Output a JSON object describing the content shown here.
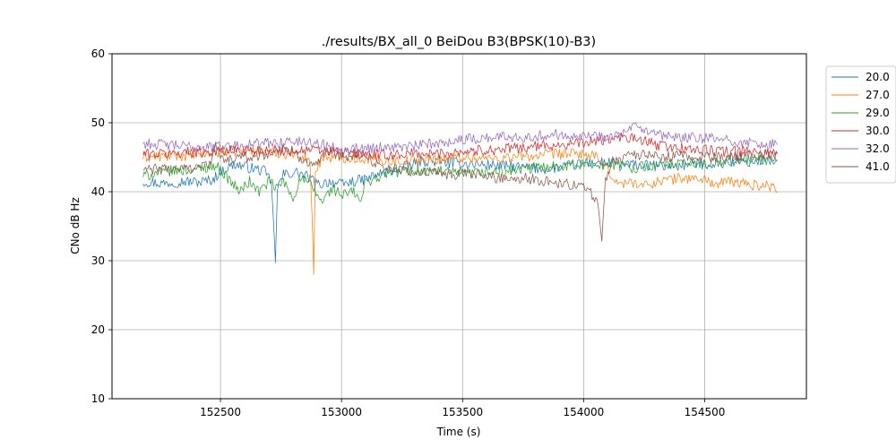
{
  "chart_data": {
    "type": "line",
    "title": "./results/BX_all_0 BeiDou B3(BPSK(10)-B3)",
    "xlabel": "Time (s)",
    "ylabel": "CNo dB Hz",
    "xlim": [
      152052,
      154920
    ],
    "ylim": [
      10,
      60
    ],
    "xticks": [
      152500,
      153000,
      153500,
      154000,
      154500
    ],
    "yticks": [
      10,
      20,
      30,
      40,
      50,
      60
    ],
    "xtick_labels": [
      "152500",
      "153000",
      "153500",
      "154000",
      "154500"
    ],
    "ytick_labels": [
      "10",
      "20",
      "30",
      "40",
      "50",
      "60"
    ],
    "grid": true,
    "legend_position": "outside-right-top",
    "series": [
      {
        "name": "20.0",
        "color": "#1f77b4",
        "points": [
          [
            152180,
            41.5
          ],
          [
            152260,
            41.2
          ],
          [
            152340,
            41.5
          ],
          [
            152420,
            41.4
          ],
          [
            152470,
            41.8
          ],
          [
            152500,
            43.0
          ],
          [
            152560,
            44.0
          ],
          [
            152620,
            43.5
          ],
          [
            152680,
            43.0
          ],
          [
            152710,
            41.5
          ],
          [
            152720,
            35.0
          ],
          [
            152727,
            29.7
          ],
          [
            152735,
            40.5
          ],
          [
            152760,
            42.5
          ],
          [
            152820,
            42.8
          ],
          [
            152870,
            42.0
          ],
          [
            152900,
            41.0
          ],
          [
            152950,
            41.5
          ],
          [
            153000,
            41.0
          ],
          [
            153050,
            41.5
          ],
          [
            153100,
            41.8
          ],
          [
            153150,
            42.5
          ],
          [
            153250,
            43.5
          ],
          [
            153350,
            44.5
          ],
          [
            153450,
            44.2
          ],
          [
            153550,
            44.0
          ],
          [
            153650,
            43.8
          ],
          [
            153750,
            43.5
          ],
          [
            153850,
            43.3
          ],
          [
            153950,
            43.8
          ],
          [
            154050,
            44.3
          ],
          [
            154150,
            44.0
          ],
          [
            154250,
            43.8
          ],
          [
            154350,
            43.7
          ],
          [
            154450,
            44.0
          ],
          [
            154550,
            44.1
          ],
          [
            154650,
            44.3
          ],
          [
            154750,
            44.5
          ],
          [
            154800,
            44.6
          ]
        ]
      },
      {
        "name": "27.0",
        "color": "#ff7f0e",
        "points": [
          [
            152180,
            45.0
          ],
          [
            152300,
            45.2
          ],
          [
            152400,
            45.3
          ],
          [
            152500,
            45.8
          ],
          [
            152600,
            46.0
          ],
          [
            152700,
            45.8
          ],
          [
            152780,
            45.5
          ],
          [
            152840,
            45.3
          ],
          [
            152870,
            44.0
          ],
          [
            152880,
            35.0
          ],
          [
            152885,
            28.0
          ],
          [
            152892,
            43.0
          ],
          [
            152920,
            45.0
          ],
          [
            153000,
            45.0
          ],
          [
            153100,
            44.8
          ],
          [
            153200,
            44.5
          ],
          [
            153300,
            44.5
          ],
          [
            153400,
            44.8
          ],
          [
            153500,
            45.0
          ],
          [
            153600,
            44.8
          ],
          [
            153700,
            45.0
          ],
          [
            153800,
            45.2
          ],
          [
            153900,
            45.5
          ],
          [
            154000,
            45.5
          ],
          [
            154050,
            45.0
          ],
          [
            154100,
            43.0
          ],
          [
            154150,
            41.0
          ],
          [
            154200,
            41.5
          ],
          [
            154250,
            40.8
          ],
          [
            154300,
            41.5
          ],
          [
            154400,
            42.0
          ],
          [
            154500,
            41.8
          ],
          [
            154550,
            41.0
          ],
          [
            154600,
            41.5
          ],
          [
            154700,
            41.0
          ],
          [
            154780,
            40.8
          ],
          [
            154800,
            40.0
          ]
        ]
      },
      {
        "name": "29.0",
        "color": "#2ca02c",
        "points": [
          [
            152180,
            42.3
          ],
          [
            152280,
            43.0
          ],
          [
            152380,
            43.2
          ],
          [
            152480,
            43.8
          ],
          [
            152530,
            42.0
          ],
          [
            152580,
            40.0
          ],
          [
            152620,
            41.5
          ],
          [
            152660,
            40.0
          ],
          [
            152700,
            41.5
          ],
          [
            152730,
            40.5
          ],
          [
            152760,
            41.5
          ],
          [
            152800,
            39.0
          ],
          [
            152830,
            42.0
          ],
          [
            152870,
            41.0
          ],
          [
            152920,
            38.5
          ],
          [
            152960,
            40.5
          ],
          [
            153000,
            39.5
          ],
          [
            153050,
            40.0
          ],
          [
            153080,
            38.5
          ],
          [
            153100,
            41.5
          ],
          [
            153150,
            42.0
          ],
          [
            153200,
            42.8
          ],
          [
            153300,
            43.0
          ],
          [
            153400,
            43.0
          ],
          [
            153500,
            42.5
          ],
          [
            153600,
            42.8
          ],
          [
            153700,
            43.0
          ],
          [
            153800,
            43.5
          ],
          [
            153900,
            43.8
          ],
          [
            154000,
            44.0
          ],
          [
            154100,
            44.0
          ],
          [
            154200,
            43.5
          ],
          [
            154300,
            43.8
          ],
          [
            154400,
            44.0
          ],
          [
            154500,
            44.2
          ],
          [
            154600,
            44.5
          ],
          [
            154700,
            44.8
          ],
          [
            154800,
            44.5
          ]
        ]
      },
      {
        "name": "30.0",
        "color": "#d62728",
        "points": [
          [
            152180,
            45.5
          ],
          [
            152280,
            45.5
          ],
          [
            152380,
            45.8
          ],
          [
            152480,
            45.8
          ],
          [
            152580,
            46.0
          ],
          [
            152680,
            46.0
          ],
          [
            152780,
            46.0
          ],
          [
            152880,
            46.0
          ],
          [
            152980,
            45.8
          ],
          [
            153080,
            45.5
          ],
          [
            153180,
            45.3
          ],
          [
            153280,
            45.5
          ],
          [
            153380,
            45.5
          ],
          [
            153480,
            45.8
          ],
          [
            153580,
            46.0
          ],
          [
            153680,
            46.2
          ],
          [
            153780,
            46.5
          ],
          [
            153880,
            46.8
          ],
          [
            153980,
            47.0
          ],
          [
            154080,
            47.5
          ],
          [
            154180,
            47.8
          ],
          [
            154230,
            47.5
          ],
          [
            154300,
            46.8
          ],
          [
            154400,
            46.3
          ],
          [
            154500,
            46.0
          ],
          [
            154600,
            45.8
          ],
          [
            154700,
            45.8
          ],
          [
            154800,
            45.5
          ]
        ]
      },
      {
        "name": "32.0",
        "color": "#9467bd",
        "points": [
          [
            152180,
            47.0
          ],
          [
            152280,
            46.8
          ],
          [
            152380,
            46.5
          ],
          [
            152480,
            46.5
          ],
          [
            152580,
            46.8
          ],
          [
            152680,
            47.0
          ],
          [
            152780,
            47.3
          ],
          [
            152880,
            47.2
          ],
          [
            152980,
            46.3
          ],
          [
            153080,
            46.3
          ],
          [
            153180,
            46.5
          ],
          [
            153280,
            46.5
          ],
          [
            153380,
            47.0
          ],
          [
            153480,
            47.5
          ],
          [
            153580,
            47.8
          ],
          [
            153680,
            48.0
          ],
          [
            153780,
            48.0
          ],
          [
            153880,
            48.3
          ],
          [
            153980,
            48.3
          ],
          [
            154080,
            48.0
          ],
          [
            154180,
            48.5
          ],
          [
            154210,
            49.5
          ],
          [
            154280,
            48.3
          ],
          [
            154380,
            47.8
          ],
          [
            154480,
            47.8
          ],
          [
            154580,
            47.5
          ],
          [
            154680,
            47.0
          ],
          [
            154800,
            46.8
          ]
        ]
      },
      {
        "name": "41.0",
        "color": "#8c564b",
        "points": [
          [
            152180,
            43.2
          ],
          [
            152280,
            43.3
          ],
          [
            152380,
            43.5
          ],
          [
            152460,
            44.0
          ],
          [
            152480,
            47.5
          ],
          [
            152500,
            44.5
          ],
          [
            152600,
            45.0
          ],
          [
            152700,
            45.5
          ],
          [
            152760,
            46.5
          ],
          [
            152820,
            45.0
          ],
          [
            152900,
            44.0
          ],
          [
            152950,
            45.5
          ],
          [
            153000,
            45.0
          ],
          [
            153080,
            45.5
          ],
          [
            153150,
            44.0
          ],
          [
            153250,
            43.0
          ],
          [
            153350,
            42.8
          ],
          [
            153450,
            42.5
          ],
          [
            153550,
            42.5
          ],
          [
            153650,
            42.0
          ],
          [
            153750,
            42.0
          ],
          [
            153850,
            41.5
          ],
          [
            153950,
            41.0
          ],
          [
            154020,
            40.5
          ],
          [
            154060,
            38.0
          ],
          [
            154075,
            32.8
          ],
          [
            154090,
            42.0
          ],
          [
            154120,
            44.5
          ],
          [
            154200,
            45.5
          ],
          [
            154300,
            45.0
          ],
          [
            154400,
            45.2
          ],
          [
            154500,
            45.0
          ],
          [
            154600,
            45.0
          ],
          [
            154700,
            45.3
          ],
          [
            154800,
            45.5
          ]
        ]
      }
    ]
  }
}
